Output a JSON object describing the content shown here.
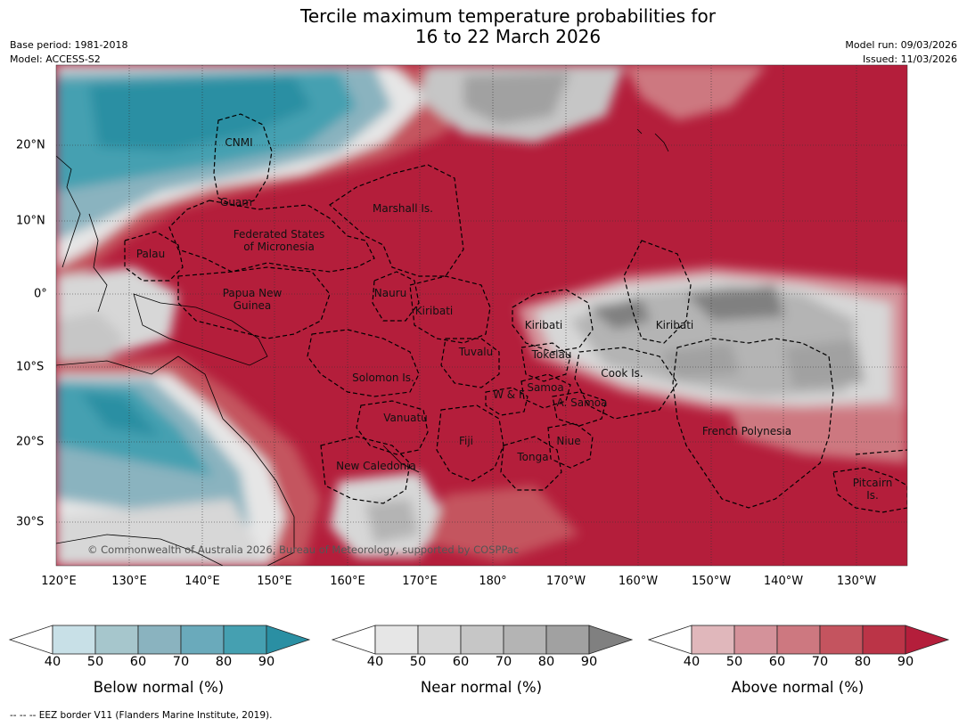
{
  "title_line1": "Tercile maximum temperature probabilities for",
  "title_line2": "16 to 22 March 2026",
  "base_period": "Base period: 1981-2018",
  "model": "Model: ACCESS-S2",
  "model_run": "Model run: 09/03/2026",
  "issued": "Issued: 11/03/2026",
  "latitudes": [
    "20°N",
    "10°N",
    "0°",
    "10°S",
    "20°S",
    "30°S"
  ],
  "longitudes": [
    "120°E",
    "130°E",
    "140°E",
    "150°E",
    "160°E",
    "170°E",
    "180°",
    "170°W",
    "160°W",
    "150°W",
    "140°W",
    "130°W"
  ],
  "regions": [
    {
      "name": "CNMI"
    },
    {
      "name": "Guam"
    },
    {
      "name": "Marshall Is."
    },
    {
      "name": "Federated States\nof Micronesia"
    },
    {
      "name": "Palau"
    },
    {
      "name": "Papua New\nGuinea"
    },
    {
      "name": "Nauru"
    },
    {
      "name": "Kiribati"
    },
    {
      "name": "Kiribati"
    },
    {
      "name": "Kiribati"
    },
    {
      "name": "Tuvalu"
    },
    {
      "name": "Tokelau"
    },
    {
      "name": "Solomon Is."
    },
    {
      "name": "Samoa"
    },
    {
      "name": "W & F"
    },
    {
      "name": "A. Samoa"
    },
    {
      "name": "Cook Is."
    },
    {
      "name": "Vanuatu"
    },
    {
      "name": "Fiji"
    },
    {
      "name": "Niue"
    },
    {
      "name": "Tonga"
    },
    {
      "name": "French Polynesia"
    },
    {
      "name": "New Caledonia"
    },
    {
      "name": "Pitcairn\nIs."
    }
  ],
  "copyright": "© Commonwealth of Australia 2026, Bureau of Meteorology, supported by COSPPac",
  "colorbars": [
    {
      "label": "Below normal (%)",
      "colors": [
        "#c8e0e7",
        "#a6c6cc",
        "#8ab3bf",
        "#6aaabb",
        "#45a0b1",
        "#2a8fa3"
      ]
    },
    {
      "label": "Near normal (%)",
      "colors": [
        "#e6e6e6",
        "#d7d7d7",
        "#c6c6c6",
        "#b4b4b4",
        "#a1a1a1",
        "#808080"
      ]
    },
    {
      "label": "Above normal (%)",
      "colors": [
        "#e0b7bb",
        "#d4929a",
        "#cd7880",
        "#c4545f",
        "#bb3447",
        "#b41e3b"
      ]
    }
  ],
  "ticks": [
    "40",
    "50",
    "60",
    "70",
    "80",
    "90"
  ],
  "footnote": "--  --  -- EEZ border V11 (Flanders Marine Institute, 2019)."
}
